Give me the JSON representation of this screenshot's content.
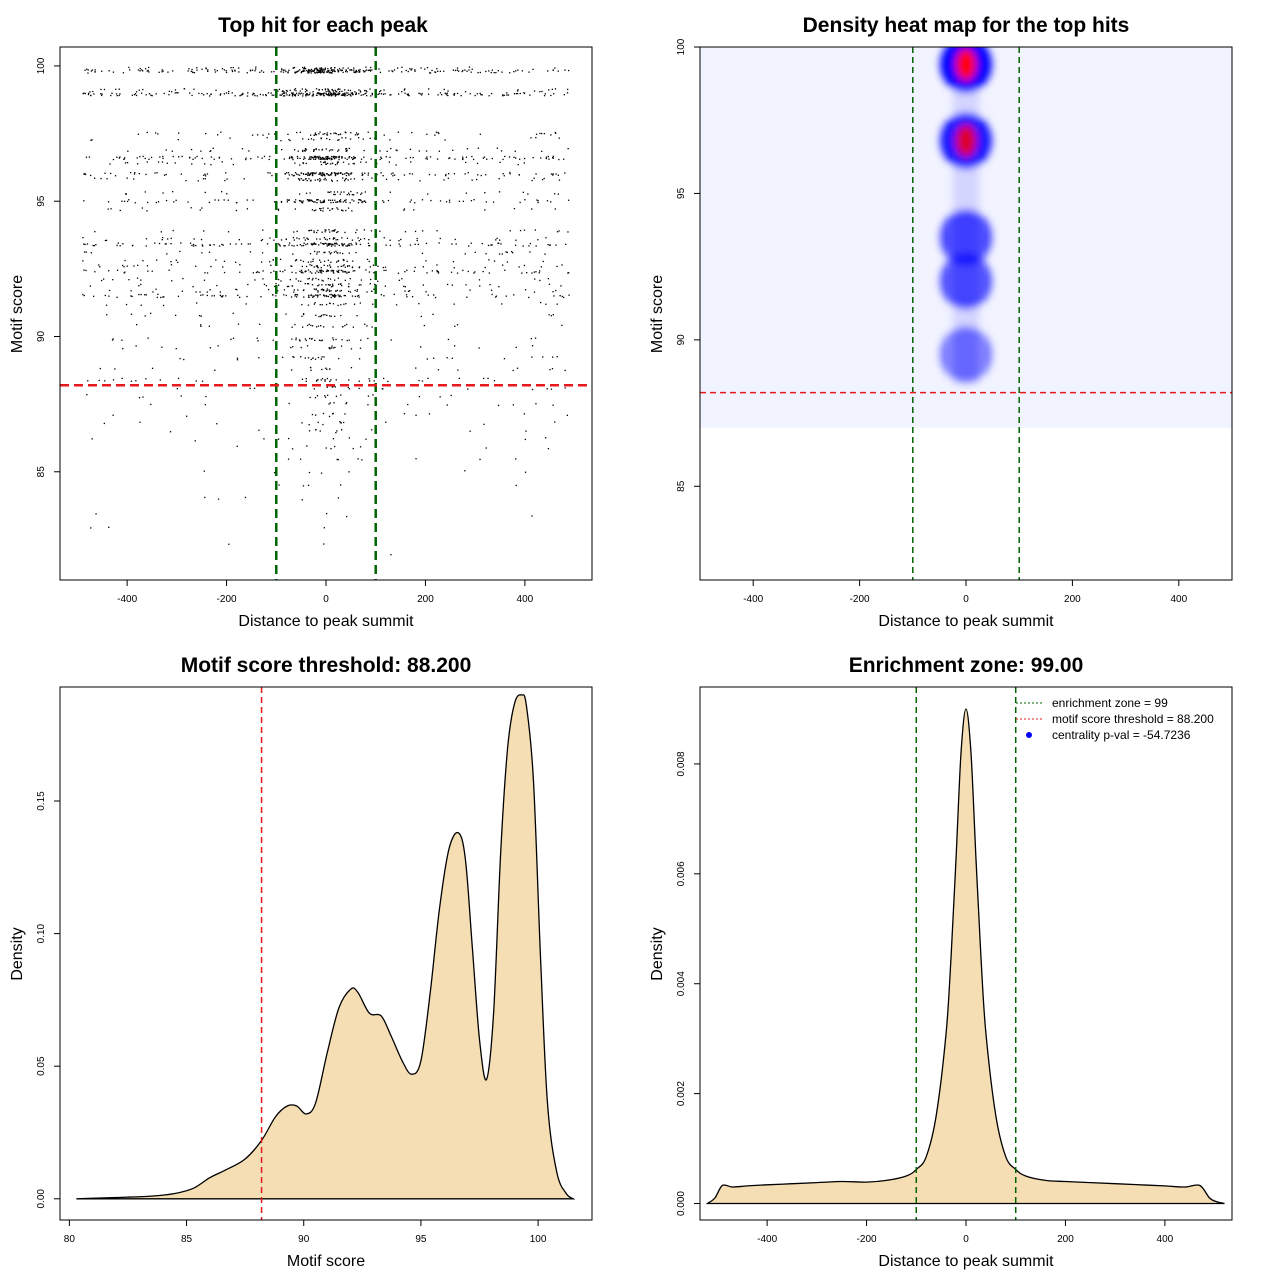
{
  "chart_data": [
    {
      "type": "scatter",
      "title": "Top hit for each peak",
      "xlabel": "Distance to peak summit",
      "ylabel": "Motif score",
      "xlim": [
        -535,
        535
      ],
      "ylim": [
        81,
        100.7
      ],
      "xticks": [
        "-400",
        "-200",
        "0",
        "200",
        "400"
      ],
      "xtick_values": [
        -400,
        -200,
        0,
        200,
        400
      ],
      "yticks": [
        "85",
        "90",
        "95",
        "100"
      ],
      "ytick_values": [
        85,
        90,
        95,
        100
      ],
      "vlines": [
        -100,
        100
      ],
      "hline": 88.2,
      "score_levels": [
        99.9,
        99.8,
        99.1,
        98.95,
        97.5,
        97.3,
        96.9,
        96.6,
        96.4,
        96.0,
        95.8,
        95.3,
        95.0,
        94.7,
        93.9,
        93.6,
        93.4,
        93.1,
        92.8,
        92.6,
        92.4,
        92.1,
        91.9,
        91.7,
        91.5,
        91.2,
        90.8,
        90.4,
        89.9,
        89.6,
        89.2,
        88.8,
        88.4,
        88.1,
        87.8,
        87.5,
        87.1,
        86.8,
        86.5,
        86.2,
        85.9,
        85.5,
        85.0,
        84.5,
        84.0,
        83.4,
        82.9,
        82.3,
        81.9
      ],
      "level_counts": [
        80,
        220,
        90,
        260,
        60,
        30,
        60,
        180,
        50,
        150,
        60,
        40,
        120,
        40,
        45,
        60,
        140,
        40,
        45,
        60,
        110,
        40,
        55,
        60,
        110,
        30,
        30,
        30,
        35,
        25,
        30,
        22,
        40,
        18,
        18,
        16,
        14,
        14,
        12,
        10,
        10,
        9,
        7,
        6,
        5,
        4,
        3,
        2,
        1
      ],
      "color": "#000000",
      "line_color_v": "#006400",
      "line_color_h": "#e41a1c"
    },
    {
      "type": "heatmap",
      "title": "Density heat map for the top hits",
      "xlabel": "Distance to peak summit",
      "ylabel": "Motif score",
      "xlim": [
        -500,
        500
      ],
      "ylim": [
        81.8,
        100
      ],
      "xticks": [
        "-400",
        "-200",
        "0",
        "200",
        "400"
      ],
      "xtick_values": [
        -400,
        -200,
        0,
        200,
        400
      ],
      "yticks": [
        "85",
        "90",
        "95",
        "100"
      ],
      "ytick_values": [
        85,
        90,
        95,
        100
      ],
      "hotspots": [
        {
          "x": 0,
          "y": 99.4,
          "intensity": 1.0
        },
        {
          "x": 0,
          "y": 96.8,
          "intensity": 0.85
        },
        {
          "x": 0,
          "y": 93.5,
          "intensity": 0.55
        },
        {
          "x": 0,
          "y": 92.0,
          "intensity": 0.5
        },
        {
          "x": 0,
          "y": 89.5,
          "intensity": 0.25
        }
      ],
      "vlines": [
        -100,
        100
      ],
      "hline": 88.2,
      "colors": [
        "#ffffff",
        "#0000ff",
        "#ff0000"
      ]
    },
    {
      "type": "area",
      "title": "Motif score threshold: 88.200",
      "xlabel": "Motif score",
      "ylabel": "Density",
      "xlim": [
        79.6,
        102.3
      ],
      "ylim": [
        -0.008,
        0.193
      ],
      "xticks": [
        "80",
        "85",
        "90",
        "95",
        "100"
      ],
      "xtick_values": [
        80,
        85,
        90,
        95,
        100
      ],
      "yticks": [
        "0.00",
        "0.05",
        "0.10",
        "0.15"
      ],
      "ytick_values": [
        0,
        0.05,
        0.1,
        0.15
      ],
      "x": [
        80.3,
        82.0,
        83.5,
        84.5,
        85.3,
        86.0,
        86.7,
        87.5,
        88.2,
        88.8,
        89.3,
        89.7,
        90.1,
        90.5,
        91.0,
        91.5,
        92.0,
        92.3,
        92.8,
        93.3,
        93.7,
        94.2,
        94.6,
        95.0,
        95.4,
        95.8,
        96.2,
        96.6,
        96.9,
        97.2,
        97.5,
        97.8,
        98.1,
        98.4,
        98.7,
        99.0,
        99.3,
        99.5,
        99.8,
        100.1,
        100.4,
        100.8,
        101.2,
        101.5
      ],
      "y": [
        0.0,
        0.0005,
        0.001,
        0.002,
        0.004,
        0.008,
        0.011,
        0.015,
        0.022,
        0.031,
        0.035,
        0.035,
        0.032,
        0.036,
        0.055,
        0.072,
        0.079,
        0.078,
        0.07,
        0.069,
        0.062,
        0.052,
        0.047,
        0.052,
        0.078,
        0.11,
        0.132,
        0.138,
        0.128,
        0.094,
        0.06,
        0.045,
        0.07,
        0.13,
        0.17,
        0.187,
        0.19,
        0.186,
        0.158,
        0.092,
        0.036,
        0.01,
        0.002,
        0.0
      ],
      "vline": 88.2,
      "fill": "#f5deb3",
      "line_color": "#e41a1c"
    },
    {
      "type": "area",
      "title": "Enrichment zone: 99.00",
      "xlabel": "Distance to peak summit",
      "ylabel": "Density",
      "xlim": [
        -535,
        535
      ],
      "ylim": [
        -0.0003,
        0.0094
      ],
      "xticks": [
        "-400",
        "-200",
        "0",
        "200",
        "400"
      ],
      "xtick_values": [
        -400,
        -200,
        0,
        200,
        400
      ],
      "yticks": [
        "0.000",
        "0.002",
        "0.004",
        "0.006",
        "0.008"
      ],
      "ytick_values": [
        0,
        0.002,
        0.004,
        0.006,
        0.008
      ],
      "x": [
        -520,
        -505,
        -490,
        -470,
        -440,
        -400,
        -350,
        -300,
        -250,
        -200,
        -160,
        -120,
        -100,
        -80,
        -60,
        -40,
        -30,
        -20,
        -10,
        0,
        10,
        20,
        30,
        40,
        60,
        80,
        100,
        120,
        160,
        200,
        250,
        300,
        350,
        400,
        440,
        470,
        490,
        505,
        520
      ],
      "y": [
        0.0,
        0.0001,
        0.00033,
        0.0003,
        0.00032,
        0.00034,
        0.00036,
        0.00038,
        0.0004,
        0.00039,
        0.00042,
        0.0005,
        0.00062,
        0.00085,
        0.0016,
        0.0031,
        0.0045,
        0.0063,
        0.0082,
        0.009,
        0.0082,
        0.0063,
        0.0045,
        0.0031,
        0.0016,
        0.00085,
        0.00062,
        0.0005,
        0.00042,
        0.0004,
        0.00038,
        0.00036,
        0.00034,
        0.00032,
        0.0003,
        0.00033,
        0.0001,
        3e-05,
        0.0
      ],
      "vlines": [
        -100,
        100
      ],
      "fill": "#f5deb3",
      "legend": [
        {
          "label": "enrichment zone = 99",
          "style": "dotted",
          "color": "#006400"
        },
        {
          "label": "motif score threshold = 88.200",
          "style": "dotted",
          "color": "#e41a1c"
        },
        {
          "label": "centrality p-val = -54.7236",
          "style": "point",
          "color": "#0000ff"
        }
      ],
      "legend_position": "top-right"
    }
  ]
}
